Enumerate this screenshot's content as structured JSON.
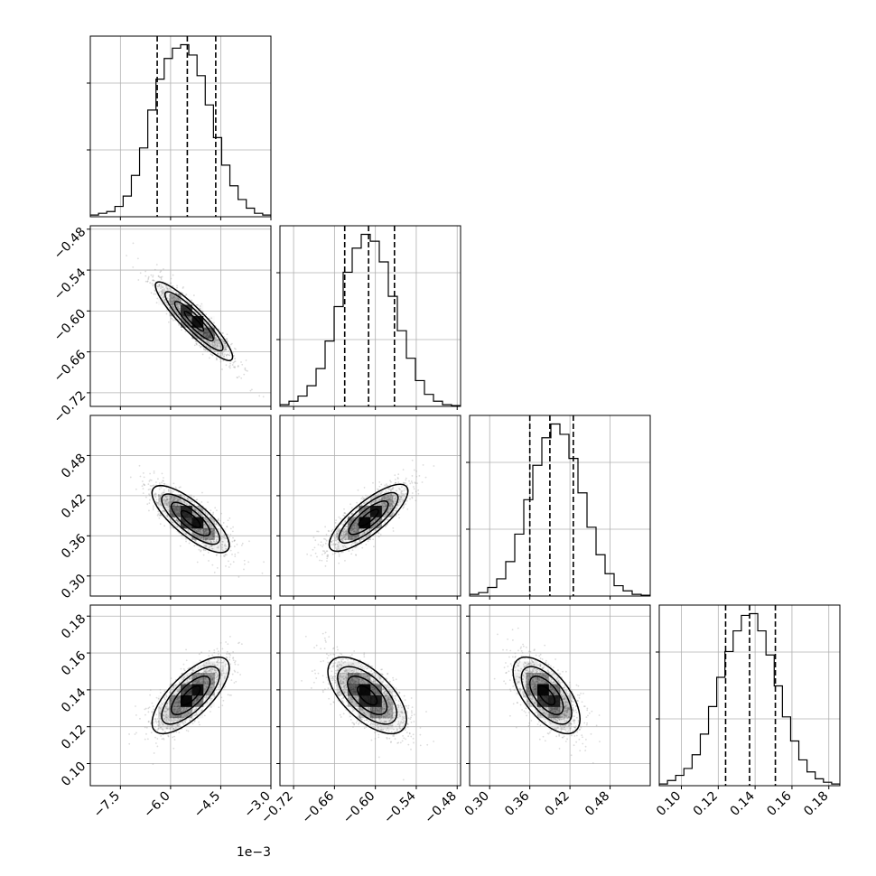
{
  "chart_data": {
    "type": "corner",
    "offset_text": "1e−3",
    "quantiles_note": "dashed lines",
    "params": [
      {
        "range": [
          -8.4,
          -3.0
        ],
        "ticks": [
          -7.5,
          -6.0,
          -4.5,
          -3.0
        ],
        "tick_labels": [
          "−7.5",
          "−6.0",
          "−4.5",
          "−3.0"
        ],
        "hist": [
          1,
          2,
          3,
          6,
          12,
          24,
          40,
          62,
          80,
          92,
          98,
          100,
          94,
          82,
          65,
          46,
          30,
          18,
          10,
          5,
          2,
          1
        ],
        "hist_max": 100,
        "quantiles": [
          -6.4,
          -5.5,
          -4.65
        ]
      },
      {
        "range": [
          -0.74,
          -0.475
        ],
        "ticks": [
          -0.72,
          -0.66,
          -0.6,
          -0.54,
          -0.48
        ],
        "tick_labels": [
          "−0.72",
          "−0.66",
          "−0.60",
          "−0.54",
          "−0.48"
        ],
        "hist": [
          1,
          3,
          6,
          12,
          22,
          38,
          58,
          78,
          92,
          100,
          96,
          84,
          64,
          44,
          28,
          15,
          7,
          3,
          1,
          0.5
        ],
        "hist_max": 100,
        "quantiles": [
          -0.645,
          -0.61,
          -0.572
        ]
      },
      {
        "range": [
          0.27,
          0.54
        ],
        "ticks": [
          0.3,
          0.36,
          0.42,
          0.48
        ],
        "tick_labels": [
          "0.30",
          "0.36",
          "0.42",
          "0.48"
        ],
        "hist": [
          1,
          2,
          5,
          10,
          20,
          36,
          56,
          76,
          92,
          100,
          94,
          80,
          60,
          40,
          24,
          13,
          6,
          3,
          1,
          0.5
        ],
        "hist_max": 100,
        "quantiles": [
          0.36,
          0.39,
          0.425
        ]
      },
      {
        "range": [
          0.088,
          0.186
        ],
        "ticks": [
          0.1,
          0.12,
          0.14,
          0.16,
          0.18
        ],
        "tick_labels": [
          "0.10",
          "0.12",
          "0.14",
          "0.16",
          "0.18"
        ],
        "hist": [
          1,
          3,
          6,
          10,
          18,
          30,
          46,
          63,
          78,
          90,
          99,
          100,
          90,
          76,
          58,
          40,
          26,
          15,
          8,
          4,
          2,
          1
        ],
        "hist_max": 100,
        "quantiles": [
          0.124,
          0.137,
          0.151
        ]
      }
    ],
    "pairs": [
      {
        "x": 0,
        "y": 1,
        "center": [
          -5.3,
          -0.615
        ],
        "sx": 1.5,
        "sy": 0.075,
        "rho": -0.91
      },
      {
        "x": 0,
        "y": 2,
        "center": [
          -5.4,
          0.385
        ],
        "sx": 1.5,
        "sy": 0.065,
        "rho": -0.78
      },
      {
        "x": 1,
        "y": 2,
        "center": [
          -0.61,
          0.387
        ],
        "sx": 0.075,
        "sy": 0.065,
        "rho": 0.8
      },
      {
        "x": 0,
        "y": 3,
        "center": [
          -5.4,
          0.137
        ],
        "sx": 1.5,
        "sy": 0.027,
        "rho": 0.72
      },
      {
        "x": 1,
        "y": 3,
        "center": [
          -0.612,
          0.137
        ],
        "sx": 0.075,
        "sy": 0.027,
        "rho": -0.62
      },
      {
        "x": 2,
        "y": 3,
        "center": [
          0.385,
          0.137
        ],
        "sx": 0.065,
        "sy": 0.027,
        "rho": -0.62
      }
    ],
    "contour_levels_sigma": [
      0.5,
      1.0,
      1.5,
      2.0
    ],
    "grid": true,
    "colors": {
      "points": "#9a9a9a",
      "contour": "#000000",
      "density": "#000000",
      "grid": "#b0b0b0"
    }
  }
}
